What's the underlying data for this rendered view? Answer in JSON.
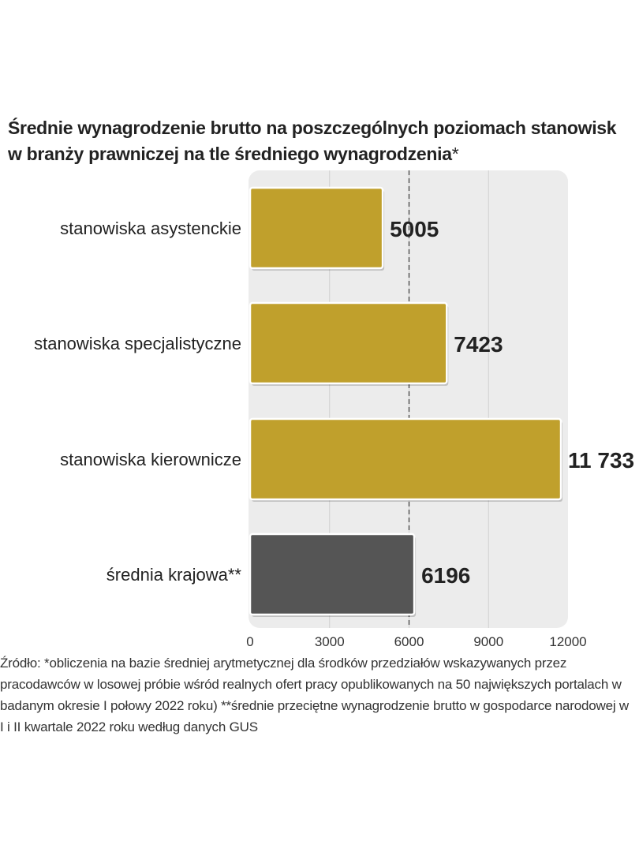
{
  "title": {
    "line1": "Średnie wynagrodzenie brutto na poszczególnych poziomach stanowisk",
    "line2": "w branży prawniczej na tle średniego wynagrodzenia",
    "marker": "*"
  },
  "chart_data": {
    "type": "bar",
    "orientation": "horizontal",
    "categories": [
      "stanowiska asystenckie",
      "stanowiska specjalistyczne",
      "stanowiska kierownicze",
      "średnia krajowa**"
    ],
    "values": [
      5005,
      7423,
      11733,
      6196
    ],
    "value_labels": [
      "5005",
      "7423",
      "11 733",
      "6196"
    ],
    "xlim": [
      0,
      12000
    ],
    "xticks": [
      0,
      3000,
      6000,
      9000,
      12000
    ],
    "xtick_labels": [
      "0",
      "3000",
      "6000",
      "9000",
      "12000"
    ],
    "reference_line": 6196,
    "grid": true,
    "colors": {
      "bar": "#c0a02c",
      "highlight_bar": "#555555",
      "plot_background": "#ececec",
      "grid": "#d0d0d0",
      "reference_line": "#333333"
    }
  },
  "source": {
    "text": "Źródło: *obliczenia na bazie średniej arytmetycznej dla środków przedziałów wskazywanych przez pracodawców w losowej próbie wśród realnych ofert pracy opublikowanych na 50 największych portalach w badanym okresie I połowy 2022 roku) **średnie przeciętne wynagrodzenie brutto w gospodarce narodowej w I i II kwartale 2022 roku według danych GUS"
  }
}
